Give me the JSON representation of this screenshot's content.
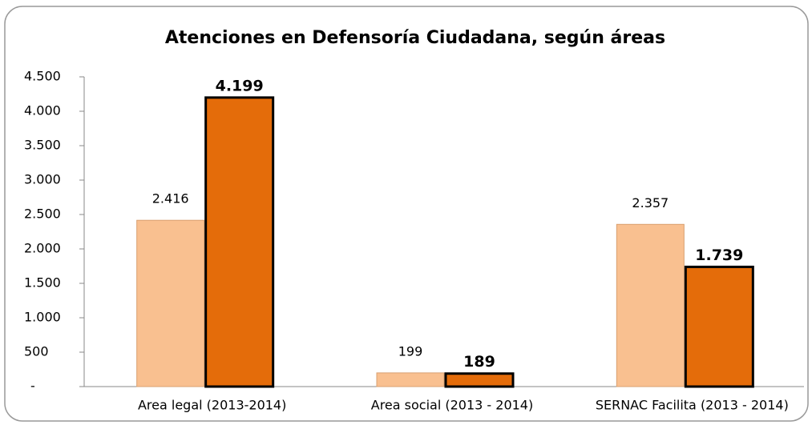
{
  "chart_data": {
    "type": "bar",
    "title": "Atenciones en Defensoría Ciudadana, según áreas",
    "categories": [
      "Area legal (2013-2014)",
      "Area social (2013 - 2014)",
      "SERNAC Facilita (2013 - 2014)"
    ],
    "series": [
      {
        "color": "#f9c090",
        "values": [
          2416,
          199,
          2357
        ],
        "value_labels": [
          "2.416",
          "199",
          "2.357"
        ]
      },
      {
        "color": "#e46c0a",
        "values": [
          4199,
          189,
          1739
        ],
        "value_labels": [
          "4.199",
          "189",
          "1.739"
        ]
      }
    ],
    "ylim": [
      0,
      4500
    ],
    "yticks": [
      {
        "value": 0,
        "label": "-"
      },
      500,
      {
        "value": 1000,
        "label": "1.000"
      },
      {
        "value": 1500,
        "label": "1.500"
      },
      {
        "value": 2000,
        "label": "2.000"
      },
      {
        "value": 2500,
        "label": "2.500"
      },
      {
        "value": 3000,
        "label": "3.000"
      },
      {
        "value": 3500,
        "label": "3.500"
      },
      {
        "value": 4000,
        "label": "4.000"
      },
      {
        "value": 4500,
        "label": "4.500"
      }
    ],
    "grid": false
  }
}
